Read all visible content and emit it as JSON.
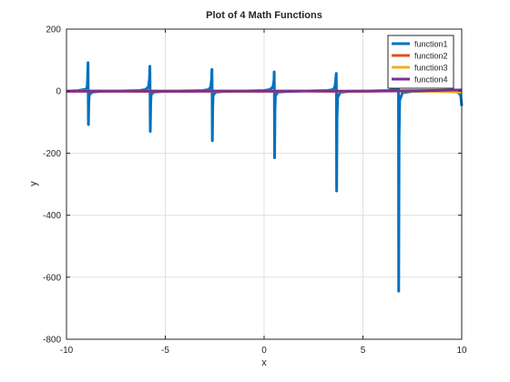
{
  "chart_data": {
    "type": "line",
    "title": "Plot of 4 Math Functions",
    "xlabel": "x",
    "ylabel": "y",
    "xlim": [
      -10,
      10
    ],
    "ylim": [
      -800,
      200
    ],
    "xticks": [
      -10,
      -5,
      0,
      5,
      10
    ],
    "xtick_labels": [
      "-10",
      "-5",
      "0",
      "5",
      "10"
    ],
    "yticks": [
      -800,
      -600,
      -400,
      -200,
      0,
      200
    ],
    "ytick_labels": [
      "-800",
      "-600",
      "-400",
      "-200",
      "0",
      "200"
    ],
    "grid": true,
    "legend_position": "top-right",
    "series": [
      {
        "name": "function1",
        "color": "#0072BD",
        "x": [
          -10,
          -9.4,
          -9.0,
          -8.95,
          -8.93,
          -8.91,
          -8.9,
          -8.89,
          -8.87,
          -8.85,
          -8.7,
          -8.3,
          -6.3,
          -6.0,
          -5.85,
          -5.8,
          -5.78,
          -5.77,
          -5.76,
          -5.74,
          -5.72,
          -5.6,
          -5.1,
          -3.1,
          -2.8,
          -2.7,
          -2.66,
          -2.64,
          -2.63,
          -2.62,
          -2.6,
          -2.58,
          -2.45,
          -2.0,
          0.0,
          0.3,
          0.45,
          0.5,
          0.51,
          0.52,
          0.53,
          0.55,
          0.57,
          0.7,
          1.2,
          3.2,
          3.5,
          3.58,
          3.62,
          3.65,
          3.66,
          3.67,
          3.69,
          3.72,
          3.85,
          4.3,
          6.3,
          6.6,
          6.72,
          6.76,
          6.79,
          6.8,
          6.81,
          6.83,
          6.86,
          7.0,
          7.5,
          9.0,
          9.6,
          9.85,
          9.95,
          10.0
        ],
        "y": [
          0,
          2,
          6,
          15,
          45,
          92,
          0,
          -108,
          -40,
          -12,
          -3,
          -1,
          2,
          5,
          14,
          40,
          80,
          0,
          -130,
          -45,
          -12,
          -3,
          -1,
          2,
          5,
          14,
          38,
          70,
          0,
          -160,
          -50,
          -14,
          -3,
          -1,
          2,
          5,
          14,
          35,
          62,
          0,
          -215,
          -60,
          -15,
          -3,
          -1,
          2,
          5,
          14,
          32,
          57,
          0,
          -322,
          -90,
          -20,
          -4,
          -1,
          2,
          5,
          13,
          30,
          55,
          0,
          -645,
          -150,
          -30,
          -5,
          -1,
          1,
          0,
          -5,
          -15,
          -48
        ]
      },
      {
        "name": "function2",
        "color": "#D95319",
        "x": [
          -10,
          -8,
          -6,
          -4,
          -2,
          0,
          2,
          4,
          6,
          8,
          10
        ],
        "y": [
          1,
          0.5,
          -0.8,
          0.9,
          -0.6,
          0,
          0.7,
          -0.9,
          0.4,
          0.8,
          3
        ]
      },
      {
        "name": "function3",
        "color": "#EDB120",
        "x": [
          -10,
          -8,
          -6,
          -4,
          -2,
          0,
          2,
          4,
          6,
          8,
          9.5,
          10
        ],
        "y": [
          0.5,
          -0.4,
          0.6,
          -0.5,
          0.3,
          0,
          0.4,
          -0.6,
          0.5,
          -0.3,
          -2,
          -4
        ]
      },
      {
        "name": "function4",
        "color": "#7E2F8E",
        "x": [
          -10,
          -8,
          -6,
          -4,
          -2,
          0,
          2,
          4,
          6,
          8,
          10
        ],
        "y": [
          -0.5,
          -0.3,
          0.2,
          -0.4,
          0.1,
          -0.2,
          0.3,
          -0.1,
          0.2,
          1.5,
          4
        ]
      }
    ]
  }
}
